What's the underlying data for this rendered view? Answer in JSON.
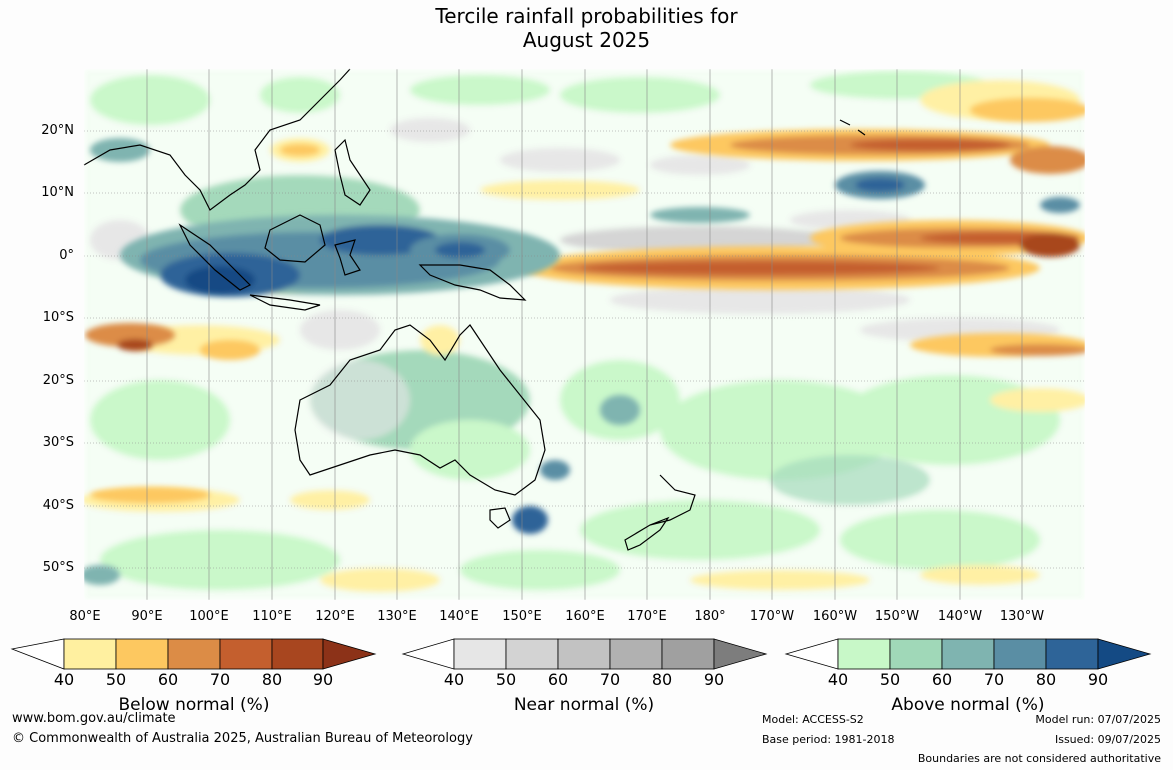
{
  "title_line1": "Tercile rainfall probabilities for",
  "title_line2": "August 2025",
  "map": {
    "lat_labels": [
      "20°N",
      "10°N",
      "0°",
      "10°S",
      "20°S",
      "30°S",
      "40°S",
      "50°S"
    ],
    "lon_labels": [
      "80°E",
      "90°E",
      "100°E",
      "110°E",
      "120°E",
      "130°E",
      "140°E",
      "150°E",
      "160°E",
      "170°E",
      "180°",
      "170°W",
      "160°W",
      "150°W",
      "140°W",
      "130°W"
    ]
  },
  "legends": [
    {
      "label": "Below normal (%)",
      "ticks": [
        "40",
        "50",
        "60",
        "70",
        "80",
        "90"
      ],
      "colors": [
        "#fff0a0",
        "#fdc860",
        "#dc8c46",
        "#c45f2e",
        "#a8461f",
        "#8c3218"
      ]
    },
    {
      "label": "Near normal (%)",
      "ticks": [
        "40",
        "50",
        "60",
        "70",
        "80",
        "90"
      ],
      "colors": [
        "#e6e6e6",
        "#d3d3d3",
        "#c2c2c2",
        "#b1b1b1",
        "#a0a0a0",
        "#7d7d7d"
      ]
    },
    {
      "label": "Above normal (%)",
      "ticks": [
        "40",
        "50",
        "60",
        "70",
        "80",
        "90"
      ],
      "colors": [
        "#c8f8c8",
        "#a0d8b8",
        "#7fb4b0",
        "#5a8ea4",
        "#2e6498",
        "#144a84"
      ]
    }
  ],
  "footer": {
    "website": "www.bom.gov.au/climate",
    "copyright": "© Commonwealth of Australia 2025, Australian Bureau of Meteorology",
    "model": "Model: ACCESS-S2",
    "base_period": "Base period: 1981-2018",
    "model_run": "Model run: 07/07/2025",
    "issued": "Issued: 09/07/2025",
    "disclaimer": "Boundaries are not considered authoritative"
  }
}
